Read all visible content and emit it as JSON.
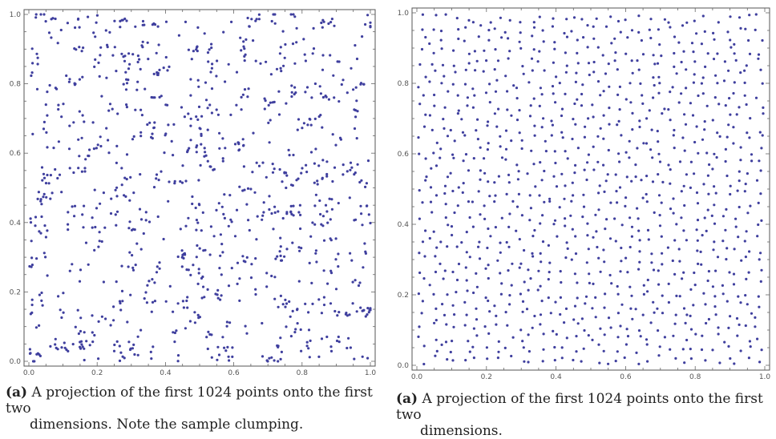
{
  "chart_data": [
    {
      "type": "scatter",
      "title": "",
      "xlabel": "",
      "ylabel": "",
      "xlim": [
        0.0,
        1.0
      ],
      "ylim": [
        0.0,
        1.0
      ],
      "x_ticks": [
        "0.0",
        "0.2",
        "0.4",
        "0.6",
        "0.8",
        "1.0"
      ],
      "y_ticks": [
        "0.0",
        "0.2",
        "0.4",
        "0.6",
        "0.8",
        "1.0"
      ],
      "grid": false,
      "point_count": 1024,
      "distribution": "clumped",
      "point_color": "#3f3f9e",
      "caption_label": "(a)",
      "caption_line1": "A projection of the first 1024 points onto the first two",
      "caption_line2": "dimensions. Note the sample clumping."
    },
    {
      "type": "scatter",
      "title": "",
      "xlabel": "",
      "ylabel": "",
      "xlim": [
        0.0,
        1.0
      ],
      "ylim": [
        0.0,
        1.0
      ],
      "x_ticks": [
        "0.0",
        "0.2",
        "0.4",
        "0.6",
        "0.8",
        "1.0"
      ],
      "y_ticks": [
        "0.0",
        "0.2",
        "0.4",
        "0.6",
        "0.8",
        "1.0"
      ],
      "grid": false,
      "point_count": 1024,
      "distribution": "stratified",
      "point_color": "#3f3f9e",
      "caption_label": "(a)",
      "caption_line1": "A projection of the first 1024 points onto the first two",
      "caption_line2": "dimensions."
    }
  ]
}
